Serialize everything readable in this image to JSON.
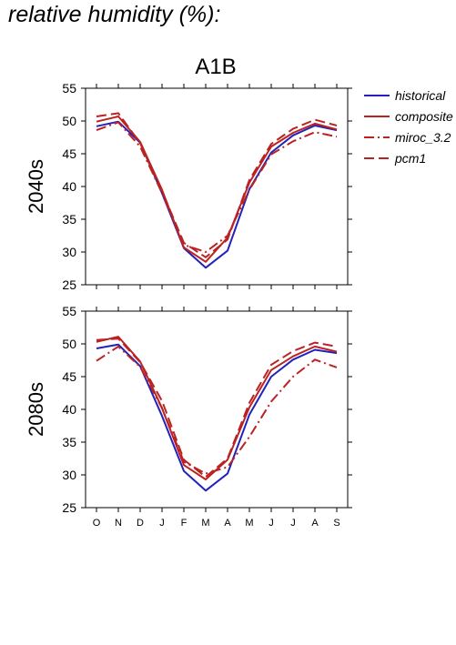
{
  "page_title": "relative humidity (%):",
  "colors": {
    "historical": "#2222bb",
    "scenario": "#bb2222",
    "axis": "#000000"
  },
  "chart_data": {
    "type": "line",
    "title": "A1B",
    "categories": [
      "O",
      "N",
      "D",
      "J",
      "F",
      "M",
      "A",
      "M",
      "J",
      "J",
      "A",
      "S"
    ],
    "ylim": [
      25,
      55
    ],
    "yticks": [
      25,
      30,
      35,
      40,
      45,
      50,
      55
    ],
    "grid": false,
    "legend_position": "right",
    "legend": [
      {
        "name": "historical",
        "dash": "solid",
        "color": "#2222bb"
      },
      {
        "name": "composite",
        "dash": "solid",
        "color": "#bb2222"
      },
      {
        "name": "miroc_3.2",
        "dash": "dashdot",
        "color": "#bb2222"
      },
      {
        "name": "pcm1",
        "dash": "dash",
        "color": "#bb2222"
      }
    ],
    "panels": [
      {
        "label": "2040s",
        "series": [
          {
            "name": "historical",
            "values": [
              49.2,
              49.9,
              46.7,
              39.0,
              30.6,
              27.6,
              30.2,
              39.6,
              45.2,
              47.8,
              49.3,
              48.6
            ]
          },
          {
            "name": "composite",
            "values": [
              49.9,
              50.7,
              46.8,
              39.5,
              30.7,
              28.5,
              32.2,
              40.6,
              46.1,
              48.2,
              49.6,
              48.7
            ]
          },
          {
            "name": "miroc_3.2",
            "values": [
              48.6,
              49.8,
              46.1,
              39.0,
              31.1,
              30.0,
              32.5,
              39.5,
              44.9,
              46.9,
              48.3,
              47.6
            ]
          },
          {
            "name": "pcm1",
            "values": [
              50.7,
              51.2,
              46.6,
              39.3,
              31.4,
              29.2,
              31.9,
              41.0,
              46.5,
              48.8,
              50.2,
              49.3
            ]
          }
        ]
      },
      {
        "label": "2080s",
        "series": [
          {
            "name": "historical",
            "values": [
              49.3,
              49.9,
              46.6,
              39.0,
              30.6,
              27.6,
              30.2,
              39.2,
              45.0,
              47.6,
              49.1,
              48.6
            ]
          },
          {
            "name": "composite",
            "values": [
              50.3,
              51.1,
              47.3,
              40.2,
              31.5,
              29.3,
              32.3,
              40.3,
              46.0,
              48.1,
              49.6,
              48.8
            ]
          },
          {
            "name": "miroc_3.2",
            "values": [
              47.4,
              49.6,
              46.5,
              40.2,
              32.0,
              30.2,
              31.2,
              35.8,
              41.2,
              45.0,
              47.6,
              46.4
            ]
          },
          {
            "name": "pcm1",
            "values": [
              50.6,
              50.8,
              47.2,
              41.3,
              32.3,
              29.7,
              32.5,
              41.0,
              46.8,
              48.9,
              50.2,
              49.6
            ]
          }
        ]
      }
    ]
  }
}
